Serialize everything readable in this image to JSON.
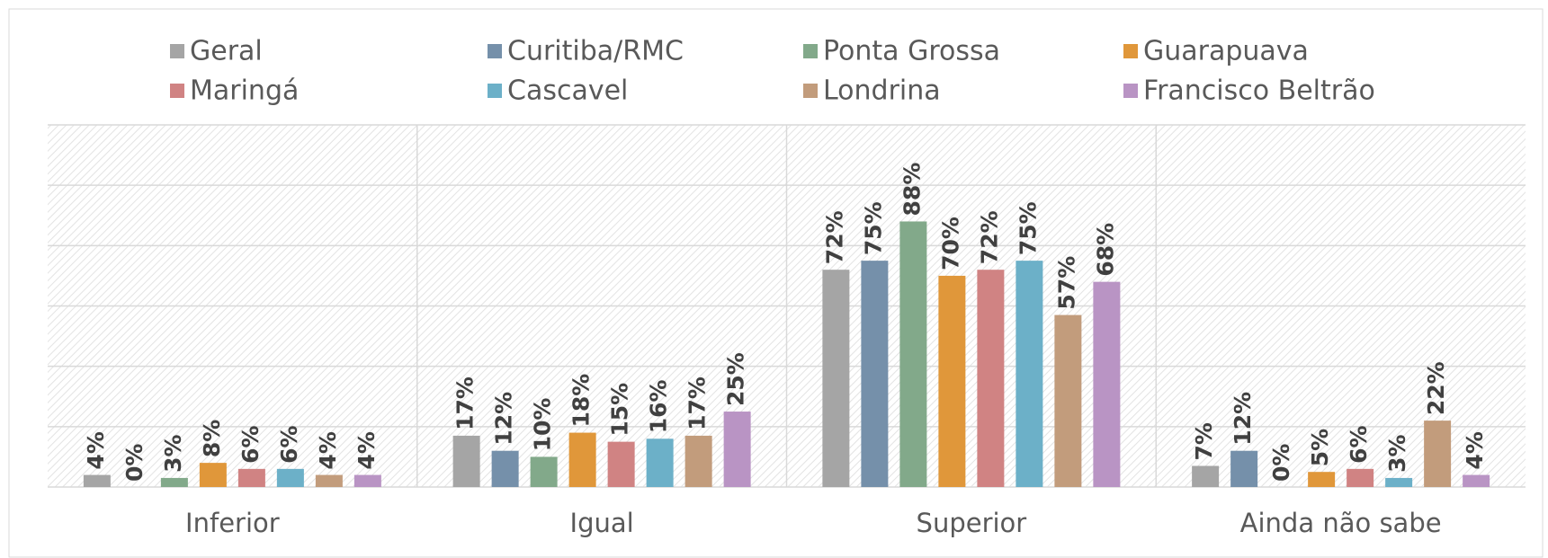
{
  "chart_data": {
    "type": "bar",
    "categories": [
      "Inferior",
      "Igual",
      "Superior",
      "Ainda não sabe"
    ],
    "ylim": [
      0,
      120
    ],
    "yticks": [
      0,
      20,
      40,
      60,
      80,
      100,
      120
    ],
    "grid": true,
    "series": [
      {
        "name": "Geral",
        "color": "#a5a5a5",
        "values": [
          4,
          17,
          72,
          7
        ],
        "value_labels": [
          "4%",
          "17%",
          "72%",
          "7%"
        ]
      },
      {
        "name": "Curitiba/RMC",
        "color": "#7590aa",
        "values": [
          0,
          12,
          75,
          12
        ],
        "value_labels": [
          "0%",
          "12%",
          "75%",
          "12%"
        ]
      },
      {
        "name": "Ponta Grossa",
        "color": "#82a98a",
        "values": [
          3,
          10,
          88,
          0
        ],
        "value_labels": [
          "3%",
          "10%",
          "88%",
          "0%"
        ]
      },
      {
        "name": "Guarapuava",
        "color": "#e0973a",
        "values": [
          8,
          18,
          70,
          5
        ],
        "value_labels": [
          "8%",
          "18%",
          "70%",
          "5%"
        ]
      },
      {
        "name": "Maringá",
        "color": "#d08383",
        "values": [
          6,
          15,
          72,
          6
        ],
        "value_labels": [
          "6%",
          "15%",
          "72%",
          "6%"
        ]
      },
      {
        "name": "Cascavel",
        "color": "#6cb0c8",
        "values": [
          6,
          16,
          75,
          3
        ],
        "value_labels": [
          "6%",
          "16%",
          "75%",
          "3%"
        ]
      },
      {
        "name": "Londrina",
        "color": "#c29c7c",
        "values": [
          4,
          17,
          57,
          22
        ],
        "value_labels": [
          "4%",
          "17%",
          "57%",
          "22%"
        ]
      },
      {
        "name": "Francisco Beltrão",
        "color": "#b994c4",
        "values": [
          4,
          25,
          68,
          4
        ],
        "value_labels": [
          "4%",
          "25%",
          "68%",
          "4%"
        ]
      }
    ]
  }
}
